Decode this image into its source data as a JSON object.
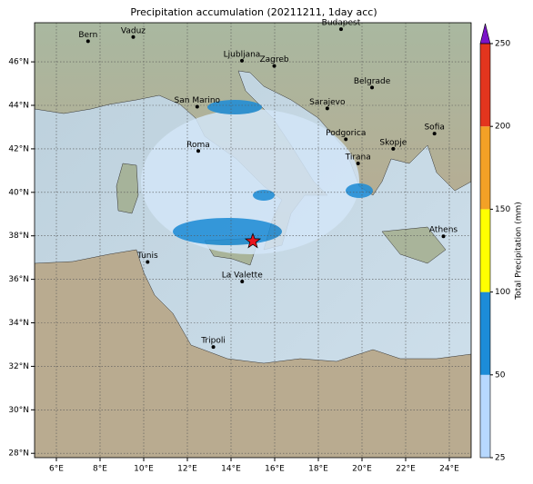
{
  "chart_data": {
    "type": "map",
    "title": "Precipitation accumulation (20211211, 1day acc)",
    "xlim": [
      5,
      25
    ],
    "ylim": [
      27.8,
      47.8
    ],
    "xticks": [
      {
        "value": 6,
        "label": "6°E"
      },
      {
        "value": 8,
        "label": "8°E"
      },
      {
        "value": 10,
        "label": "10°E"
      },
      {
        "value": 12,
        "label": "12°E"
      },
      {
        "value": 14,
        "label": "14°E"
      },
      {
        "value": 16,
        "label": "16°E"
      },
      {
        "value": 18,
        "label": "18°E"
      },
      {
        "value": 20,
        "label": "20°E"
      },
      {
        "value": 22,
        "label": "22°E"
      },
      {
        "value": 24,
        "label": "24°E"
      }
    ],
    "yticks": [
      {
        "value": 28,
        "label": "28°N"
      },
      {
        "value": 30,
        "label": "30°N"
      },
      {
        "value": 32,
        "label": "32°N"
      },
      {
        "value": 34,
        "label": "34°N"
      },
      {
        "value": 36,
        "label": "36°N"
      },
      {
        "value": 38,
        "label": "38°N"
      },
      {
        "value": 40,
        "label": "40°N"
      },
      {
        "value": 42,
        "label": "42°N"
      },
      {
        "value": 44,
        "label": "44°N"
      },
      {
        "value": 46,
        "label": "46°N"
      }
    ],
    "grid": true,
    "cities": [
      {
        "name": "Bern",
        "lon": 7.45,
        "lat": 46.95
      },
      {
        "name": "Vaduz",
        "lon": 9.52,
        "lat": 47.14
      },
      {
        "name": "Ljubljana",
        "lon": 14.5,
        "lat": 46.05
      },
      {
        "name": "Zagreb",
        "lon": 15.98,
        "lat": 45.81
      },
      {
        "name": "Budapest",
        "lon": 19.04,
        "lat": 47.5
      },
      {
        "name": "Belgrade",
        "lon": 20.46,
        "lat": 44.82
      },
      {
        "name": "San Marino",
        "lon": 12.45,
        "lat": 43.94
      },
      {
        "name": "Sarajevo",
        "lon": 18.41,
        "lat": 43.86
      },
      {
        "name": "Sofia",
        "lon": 23.32,
        "lat": 42.7
      },
      {
        "name": "Podgorica",
        "lon": 19.26,
        "lat": 42.44
      },
      {
        "name": "Skopje",
        "lon": 21.43,
        "lat": 42.0
      },
      {
        "name": "Roma",
        "lon": 12.5,
        "lat": 41.9
      },
      {
        "name": "Tirana",
        "lon": 19.82,
        "lat": 41.33
      },
      {
        "name": "Athens",
        "lon": 23.73,
        "lat": 37.98
      },
      {
        "name": "Tunis",
        "lon": 10.18,
        "lat": 36.8
      },
      {
        "name": "La Valette",
        "lon": 14.51,
        "lat": 35.9
      },
      {
        "name": "Tripoli",
        "lon": 13.19,
        "lat": 32.89
      }
    ],
    "star": {
      "lon": 15.0,
      "lat": 37.75,
      "color": "#e8141e"
    },
    "colorbar": {
      "label": "Total Precipitation (mm)",
      "ticks": [
        25,
        50,
        100,
        150,
        200,
        250
      ],
      "colors": [
        "#b7d8ff",
        "#1c8cd8",
        "#ffff00",
        "#f3a126",
        "#e3351e"
      ],
      "extend_color": "#7a14c8"
    }
  }
}
